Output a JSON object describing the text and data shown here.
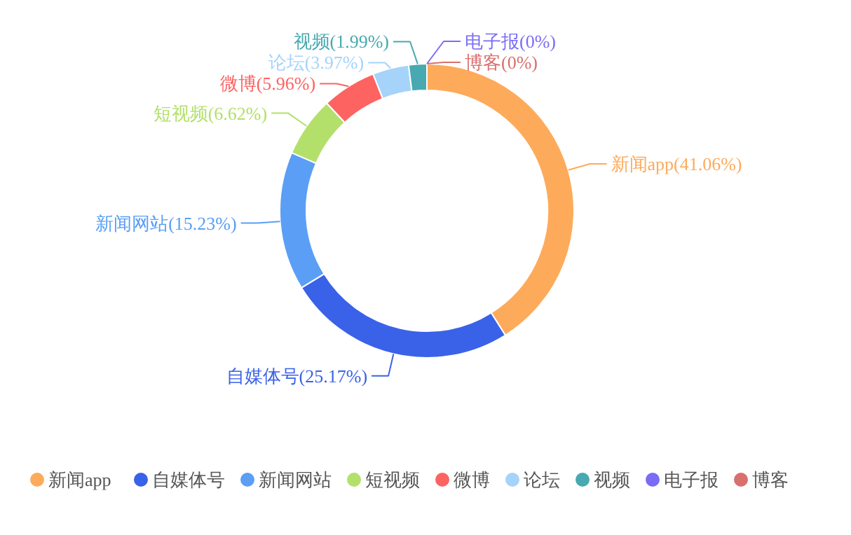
{
  "chart_data": {
    "type": "donut",
    "categories": [
      "新闻app",
      "自媒体号",
      "新闻网站",
      "短视频",
      "微博",
      "论坛",
      "视频",
      "电子报",
      null,
      "博客"
    ],
    "values": [
      41.06,
      25.17,
      15.23,
      6.62,
      5.96,
      3.97,
      1.99,
      0,
      0,
      0
    ],
    "colors": [
      "#fdab5b",
      "#3a62e8",
      "#5a9ff5",
      "#b3e06a",
      "#fd6361",
      "#a5d3fa",
      "#48a9b0",
      "#7a6cf7",
      "#4ec870",
      "#d8706e"
    ],
    "value_labels": [
      "新闻app(41.06%)",
      "自媒体号(25.17%)",
      "新闻网站(15.23%)",
      "短视频(6.62%)",
      "微博(5.96%)",
      "论坛(3.97%)",
      "视频(1.99%)",
      "电子报(0%)",
      null,
      "博客(0%)"
    ],
    "legend": "bottom"
  }
}
